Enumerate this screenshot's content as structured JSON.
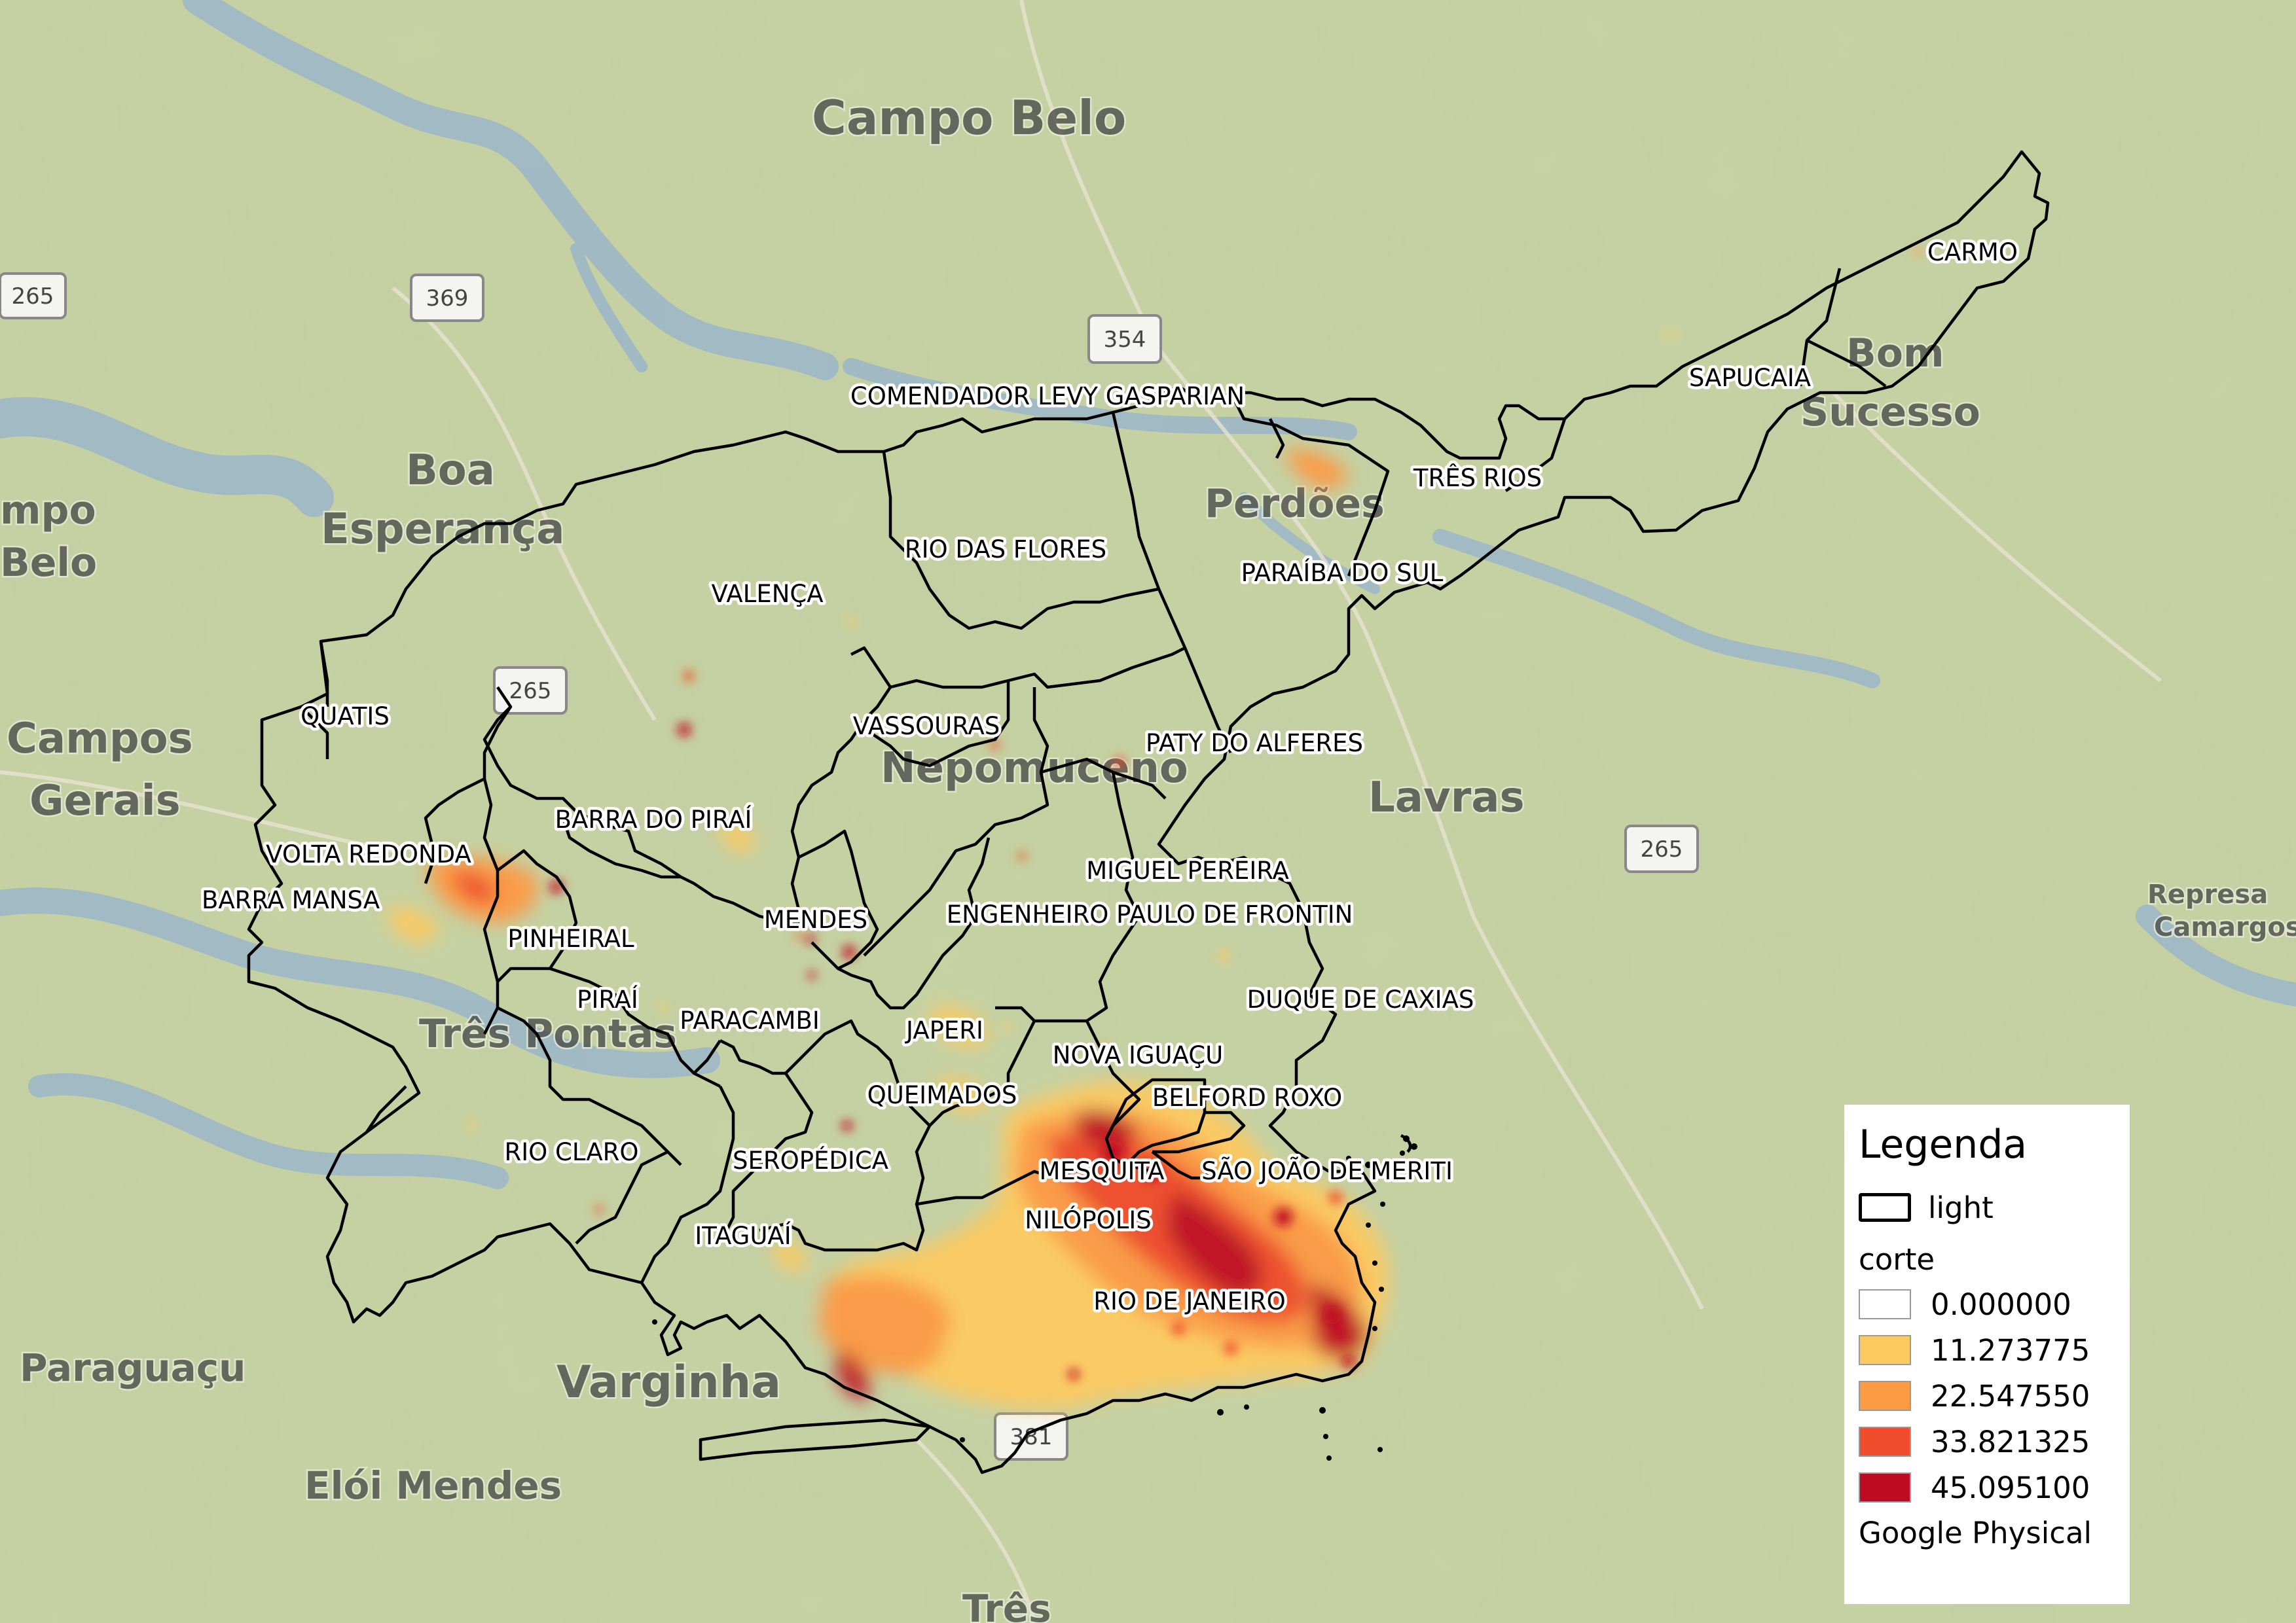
{
  "map": {
    "basemap_labels": [
      {
        "text": "Campo Belo",
        "size": 72
      },
      {
        "text": "Boa",
        "size": 64
      },
      {
        "text": "Esperança",
        "size": 64
      },
      {
        "text": "Campos",
        "size": 64
      },
      {
        "text": "Gerais",
        "size": 64
      },
      {
        "text": "mpo",
        "size": 60
      },
      {
        "text": "Belo",
        "size": 60
      },
      {
        "text": "Nepomuceno",
        "size": 64
      },
      {
        "text": "Lavras",
        "size": 64
      },
      {
        "text": "Perdões",
        "size": 60
      },
      {
        "text": "Bom",
        "size": 60
      },
      {
        "text": "Sucesso",
        "size": 60
      },
      {
        "text": "Três Pontas",
        "size": 60
      },
      {
        "text": "Paraguaçu",
        "size": 58
      },
      {
        "text": "Varginha",
        "size": 68
      },
      {
        "text": "Elói Mendes",
        "size": 58
      },
      {
        "text": "Três",
        "size": 58
      },
      {
        "text": "Represa",
        "size": 40
      },
      {
        "text": "Camargos",
        "size": 40
      }
    ],
    "road_shields": [
      "265",
      "369",
      "354",
      "265",
      "265",
      "381"
    ],
    "municipalities": [
      "COMENDADOR LEVY GASPARIAN",
      "CARMO",
      "SAPUCAIA",
      "TRÊS RIOS",
      "RIO DAS FLORES",
      "PARAÍBA DO SUL",
      "VALENÇA",
      "QUATIS",
      "VASSOURAS",
      "PATY DO ALFERES",
      "BARRA DO PIRAÍ",
      "VOLTA REDONDA",
      "MIGUEL PEREIRA",
      "BARRA MANSA",
      "MENDES",
      "ENGENHEIRO PAULO DE FRONTIN",
      "PINHEIRAL",
      "DUQUE DE CAXIAS",
      "PIRAÍ",
      "PARACAMBI",
      "JAPERI",
      "NOVA IGUAÇU",
      "QUEIMADOS",
      "BELFORD ROXO",
      "RIO CLARO",
      "SEROPÉDICA",
      "MESQUITA",
      "SÃO JOÃO DE MERITI",
      "NILÓPOLIS",
      "ITAGUAÍ",
      "RIO DE JANEIRO"
    ],
    "colors": {
      "boundary": "#000000",
      "class_1": "#fdca62",
      "class_2": "#fd9a44",
      "class_3": "#f04b2a",
      "class_4": "#c00a22"
    }
  },
  "legend": {
    "title": "Legenda",
    "boundary_layer": "light",
    "raster_layer": "corte",
    "classes": [
      {
        "label": "0.000000",
        "color": "#ffffff"
      },
      {
        "label": "11.273775",
        "color": "#fdca62"
      },
      {
        "label": "22.547550",
        "color": "#fd9a44"
      },
      {
        "label": "33.821325",
        "color": "#f04b2a"
      },
      {
        "label": "45.095100",
        "color": "#c00a22"
      }
    ],
    "basemap": "Google Physical"
  }
}
